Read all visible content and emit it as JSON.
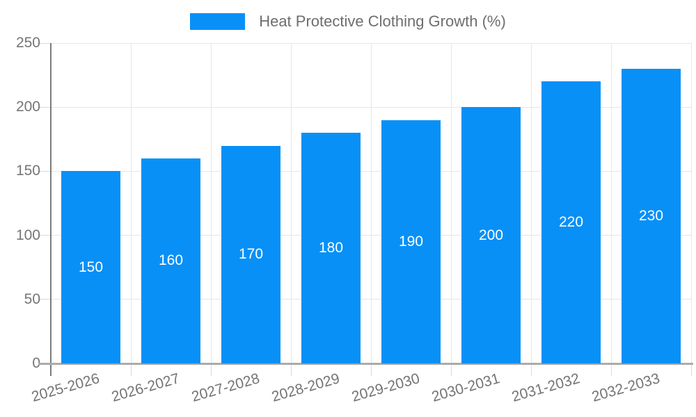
{
  "chart_data": {
    "type": "bar",
    "series_name": "Heat Protective Clothing Growth (%)",
    "categories": [
      "2025-2026",
      "2026-2027",
      "2027-2028",
      "2028-2029",
      "2029-2030",
      "2030-2031",
      "2031-2032",
      "2032-2033"
    ],
    "values": [
      150,
      160,
      170,
      180,
      190,
      200,
      220,
      230
    ],
    "title": "",
    "xlabel": "",
    "ylabel": "",
    "ylim": [
      0,
      250
    ],
    "yticks": [
      0,
      50,
      100,
      150,
      200,
      250
    ],
    "grid": true,
    "legend_position": "top",
    "value_label_position": "inside-center"
  },
  "colors": {
    "bar": "#0890f7",
    "grid": "#e6e6e6",
    "tick": "#d9d9d9",
    "y_axis": "#7a7a7a",
    "x_axis": "#ababab",
    "tick_label": "#757575",
    "legend_text": "#6e6e6e",
    "value_label": "#ffffff",
    "background": "#ffffff"
  }
}
